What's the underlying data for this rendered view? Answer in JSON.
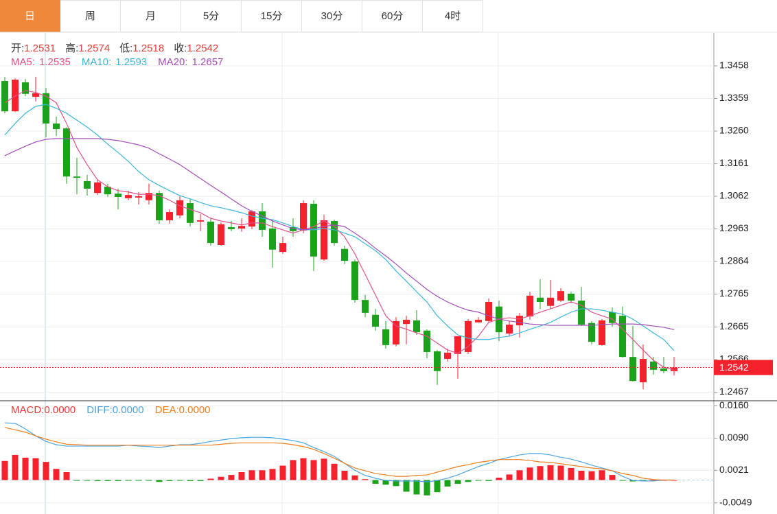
{
  "tabs": {
    "items": [
      "日",
      "周",
      "月",
      "5分",
      "15分",
      "30分",
      "60分",
      "4时"
    ],
    "active": 0
  },
  "chart_data": [
    {
      "type": "candlestick",
      "ohlc": [
        {
          "label": "开:",
          "value": 1.2531
        },
        {
          "label": "高:",
          "value": 1.2574
        },
        {
          "label": "低:",
          "value": 1.2518
        },
        {
          "label": "收:",
          "value": 1.2542
        }
      ],
      "open": [
        1.3412,
        1.332,
        1.3408,
        1.3364,
        1.3375,
        1.3283,
        1.3268,
        1.3122,
        1.3108,
        1.3072,
        1.3091,
        1.307,
        1.3056,
        1.3058,
        1.305,
        1.3072,
        1.2989,
        1.3004,
        1.3041,
        1.2985,
        1.2985,
        1.2914,
        1.2968,
        1.2964,
        1.297,
        1.3016,
        1.2964,
        1.2893,
        1.2968,
        1.2958,
        1.3039,
        1.287,
        1.2987,
        1.2902,
        1.2864,
        1.2747,
        1.2702,
        1.2658,
        1.2612,
        1.2674,
        1.2685,
        1.2654,
        1.2591,
        1.2568,
        1.2583,
        1.2589,
        1.2679,
        1.2683,
        1.2727,
        1.2645,
        1.267,
        1.2697,
        1.2754,
        1.2729,
        1.2745,
        1.2766,
        1.2745,
        1.2677,
        1.261,
        1.271,
        1.2699,
        1.2574,
        1.2497,
        1.256,
        1.2539,
        1.2531
      ],
      "high": [
        1.3425,
        1.342,
        1.3418,
        1.3425,
        1.3391,
        1.3304,
        1.3272,
        1.3179,
        1.3127,
        1.3112,
        1.31,
        1.3085,
        1.3079,
        1.3075,
        1.31,
        1.3079,
        1.3022,
        1.3062,
        1.3054,
        1.3008,
        1.2995,
        1.2983,
        1.2987,
        1.2995,
        1.302,
        1.3041,
        1.2991,
        1.2939,
        1.2995,
        1.305,
        1.305,
        1.3006,
        1.2991,
        1.2912,
        1.287,
        1.2762,
        1.272,
        1.2683,
        1.2695,
        1.2699,
        1.2716,
        1.2658,
        1.2595,
        1.2599,
        1.2637,
        1.2689,
        1.2695,
        1.2752,
        1.2745,
        1.2683,
        1.2708,
        1.2772,
        1.281,
        1.2808,
        1.2783,
        1.2772,
        1.2787,
        1.2683,
        1.2689,
        1.2724,
        1.2727,
        1.2668,
        1.2612,
        1.2574,
        1.2574,
        1.2574
      ],
      "low": [
        1.3314,
        1.3318,
        1.3366,
        1.335,
        1.3241,
        1.3245,
        1.31,
        1.3068,
        1.3064,
        1.3066,
        1.306,
        1.3022,
        1.305,
        1.3037,
        1.3037,
        1.2979,
        1.2979,
        1.2995,
        1.297,
        1.2956,
        1.2912,
        1.2912,
        1.2956,
        1.2954,
        1.2962,
        1.2939,
        1.2845,
        1.2887,
        1.2939,
        1.295,
        1.2835,
        1.2866,
        1.2912,
        1.2856,
        1.2739,
        1.2695,
        1.2654,
        1.2599,
        1.2606,
        1.2612,
        1.2641,
        1.257,
        1.2489,
        1.256,
        1.2508,
        1.2583,
        1.2679,
        1.2677,
        1.2622,
        1.2637,
        1.2633,
        1.2687,
        1.272,
        1.272,
        1.2741,
        1.2737,
        1.2668,
        1.2612,
        1.2608,
        1.2666,
        1.2572,
        1.2499,
        1.2476,
        1.252,
        1.2524,
        1.2518
      ],
      "close": [
        1.332,
        1.3416,
        1.3373,
        1.3375,
        1.3283,
        1.3266,
        1.3122,
        1.3118,
        1.3085,
        1.3104,
        1.3068,
        1.306,
        1.3066,
        1.3062,
        1.3072,
        1.2989,
        1.3014,
        1.305,
        1.2981,
        1.2989,
        1.292,
        1.2977,
        1.2962,
        1.2972,
        1.3016,
        1.296,
        1.29,
        1.292,
        1.2956,
        1.3041,
        1.2879,
        1.2989,
        1.292,
        1.2866,
        1.2747,
        1.2708,
        1.2666,
        1.261,
        1.2683,
        1.2687,
        1.2649,
        1.2589,
        1.2531,
        1.2587,
        1.2637,
        1.2683,
        1.2687,
        1.2741,
        1.2649,
        1.2672,
        1.2699,
        1.276,
        1.2741,
        1.2754,
        1.2774,
        1.2745,
        1.2672,
        1.262,
        1.2685,
        1.2677,
        1.2574,
        1.2501,
        1.2568,
        1.2535,
        1.2531,
        1.2542
      ],
      "up_color": "#f5222d",
      "down_color": "#1aa31a",
      "series": [
        {
          "name": "MA5:",
          "value": 1.2535,
          "color": "#e0508a",
          "values": [
            1.3346,
            1.3366,
            1.3383,
            1.3377,
            1.3366,
            1.3346,
            1.3283,
            1.321,
            1.3158,
            1.3112,
            1.3091,
            1.3079,
            1.3075,
            1.3068,
            1.3068,
            1.3064,
            1.305,
            1.3033,
            1.3022,
            1.3012,
            1.2995,
            1.2987,
            1.2981,
            1.2975,
            1.2981,
            1.2981,
            1.297,
            1.296,
            1.295,
            1.296,
            1.297,
            1.2987,
            1.297,
            1.2939,
            1.2887,
            1.2825,
            1.2762,
            1.2699,
            1.2668,
            1.2658,
            1.2647,
            1.2637,
            1.2616,
            1.2595,
            1.2585,
            1.2606,
            1.2637,
            1.2679,
            1.2689,
            1.2693,
            1.2689,
            1.2699,
            1.271,
            1.272,
            1.2731,
            1.2741,
            1.2731,
            1.271,
            1.2699,
            1.2689,
            1.2658,
            1.2627,
            1.2595,
            1.2564,
            1.2543,
            1.2535
          ]
        },
        {
          "name": "MA10:",
          "value": 1.2593,
          "color": "#3bb6d8",
          "values": [
            1.3248,
            1.3283,
            1.3314,
            1.3335,
            1.3341,
            1.3329,
            1.3314,
            1.3293,
            1.3272,
            1.3248,
            1.322,
            1.3195,
            1.3168,
            1.3137,
            1.3112,
            1.3095,
            1.3079,
            1.3064,
            1.3054,
            1.3043,
            1.3033,
            1.3027,
            1.302,
            1.3012,
            1.3002,
            1.2995,
            1.2991,
            1.2981,
            1.297,
            1.296,
            1.296,
            1.2964,
            1.296,
            1.295,
            1.2939,
            1.2918,
            1.2897,
            1.287,
            1.2835,
            1.2804,
            1.2772,
            1.2741,
            1.2699,
            1.2668,
            1.2641,
            1.2631,
            1.2627,
            1.2627,
            1.2633,
            1.2637,
            1.2647,
            1.2658,
            1.2668,
            1.2679,
            1.2695,
            1.271,
            1.272,
            1.272,
            1.2716,
            1.271,
            1.2704,
            1.2689,
            1.2668,
            1.2647,
            1.2627,
            1.2593
          ]
        },
        {
          "name": "MA20:",
          "value": 1.2657,
          "color": "#a24cb8",
          "values": [
            1.3185,
            1.32,
            1.3214,
            1.3227,
            1.3235,
            1.3237,
            1.3237,
            1.3237,
            1.3237,
            1.3237,
            1.3235,
            1.3231,
            1.3225,
            1.3218,
            1.3208,
            1.3191,
            1.3175,
            1.3158,
            1.3137,
            1.3116,
            1.3095,
            1.3075,
            1.3054,
            1.3033,
            1.3016,
            1.3002,
            1.2987,
            1.2975,
            1.2964,
            1.296,
            1.2964,
            1.297,
            1.2975,
            1.297,
            1.295,
            1.2929,
            1.2904,
            1.2881,
            1.2856,
            1.2829,
            1.2804,
            1.2779,
            1.2758,
            1.2741,
            1.2727,
            1.2716,
            1.271,
            1.2699,
            1.2689,
            1.2683,
            1.2679,
            1.2674,
            1.2672,
            1.267,
            1.267,
            1.267,
            1.267,
            1.267,
            1.2672,
            1.2674,
            1.2674,
            1.2674,
            1.2672,
            1.2668,
            1.2664,
            1.2657
          ]
        }
      ],
      "current_price": 1.2542,
      "price_color": "#f5222d",
      "ylim": [
        1.2443,
        1.3558
      ],
      "yticks": [
        1.3458,
        1.3359,
        {
          "value": 1.326,
          "label": "1.3260"
        },
        1.3161,
        1.3062,
        1.2963,
        1.2864,
        1.2765,
        1.2665,
        1.2566,
        1.2467
      ],
      "grid": true
    },
    {
      "type": "macd",
      "histogram": {
        "name": "MACD:",
        "value_label": "0.0000",
        "color": "#e53935",
        "up_color": "#f5222d",
        "down_color": "#1aa31a",
        "values": [
          0.0041,
          0.0054,
          0.0048,
          0.0047,
          0.0039,
          0.0024,
          0.0017,
          -0.0001,
          -0.0001,
          -0.0002,
          -0.0002,
          -0.0002,
          -0.0001,
          -0.0001,
          -0.0001,
          -0.0004,
          -0.0002,
          -0.0001,
          -0.0002,
          -0.0002,
          0.0003,
          0.0007,
          0.0011,
          0.0017,
          0.0021,
          0.0021,
          0.0024,
          0.0031,
          0.0043,
          0.0047,
          0.0043,
          0.0046,
          0.0035,
          0.002,
          0.001,
          0.0002,
          -0.0008,
          -0.001,
          -0.0013,
          -0.0025,
          -0.0031,
          -0.0033,
          -0.0026,
          -0.0014,
          -0.0008,
          -0.0004,
          -0.0001,
          -0.0002,
          0.0005,
          0.0012,
          0.0021,
          0.0027,
          0.003,
          0.0032,
          0.0031,
          0.0026,
          0.002,
          0.0019,
          0.0021,
          0.0011,
          -0.0001,
          -0.0003,
          -0.0001,
          0.0,
          0.0,
          0.0
        ]
      },
      "series": [
        {
          "name": "DIFF:",
          "value_label": "0.0000",
          "color": "#4aa3df",
          "values": [
            0.0123,
            0.0122,
            0.011,
            0.0095,
            0.0083,
            0.0076,
            0.0073,
            0.0073,
            0.0073,
            0.0073,
            0.0073,
            0.0073,
            0.0075,
            0.0073,
            0.0072,
            0.007,
            0.0073,
            0.0076,
            0.0076,
            0.0079,
            0.0083,
            0.0086,
            0.0089,
            0.0091,
            0.0092,
            0.0092,
            0.0091,
            0.0088,
            0.0085,
            0.008,
            0.007,
            0.0061,
            0.0051,
            0.0036,
            0.0021,
            0.001,
            0.0004,
            -0.0001,
            -0.0002,
            -0.0002,
            -0.0002,
            -0.0004,
            -0.0001,
            0.0004,
            0.0011,
            0.002,
            0.0029,
            0.0036,
            0.0044,
            0.0049,
            0.0054,
            0.0057,
            0.0057,
            0.0054,
            0.0049,
            0.0045,
            0.0039,
            0.0032,
            0.0026,
            0.002,
            0.0008,
            -0.0001,
            -0.0002,
            -0.0002,
            0.0,
            0.0
          ]
        },
        {
          "name": "DEA:",
          "value_label": "0.0000",
          "color": "#ef7d1a",
          "values": [
            0.0113,
            0.0108,
            0.0103,
            0.0095,
            0.0088,
            0.0082,
            0.0077,
            0.0076,
            0.0075,
            0.0075,
            0.0075,
            0.0075,
            0.0075,
            0.0075,
            0.0075,
            0.0075,
            0.0075,
            0.0075,
            0.0075,
            0.0075,
            0.0075,
            0.0077,
            0.0079,
            0.008,
            0.008,
            0.008,
            0.008,
            0.0079,
            0.0076,
            0.0072,
            0.0066,
            0.0057,
            0.0047,
            0.0036,
            0.0026,
            0.002,
            0.0014,
            0.0011,
            0.0008,
            0.0008,
            0.001,
            0.0011,
            0.0017,
            0.0023,
            0.0029,
            0.0033,
            0.0038,
            0.0041,
            0.0044,
            0.0044,
            0.0044,
            0.0042,
            0.0039,
            0.0038,
            0.0035,
            0.0032,
            0.0029,
            0.0026,
            0.0024,
            0.002,
            0.0014,
            0.001,
            0.0004,
            0.0001,
            0.0,
            0.0
          ]
        }
      ],
      "ylim": [
        -0.0073,
        0.0169
      ],
      "yticks": [
        {
          "value": 0.016,
          "label": "0.0160"
        },
        {
          "value": 0.009,
          "label": "0.0090"
        },
        0.0021,
        -0.0049
      ],
      "grid": true
    }
  ]
}
